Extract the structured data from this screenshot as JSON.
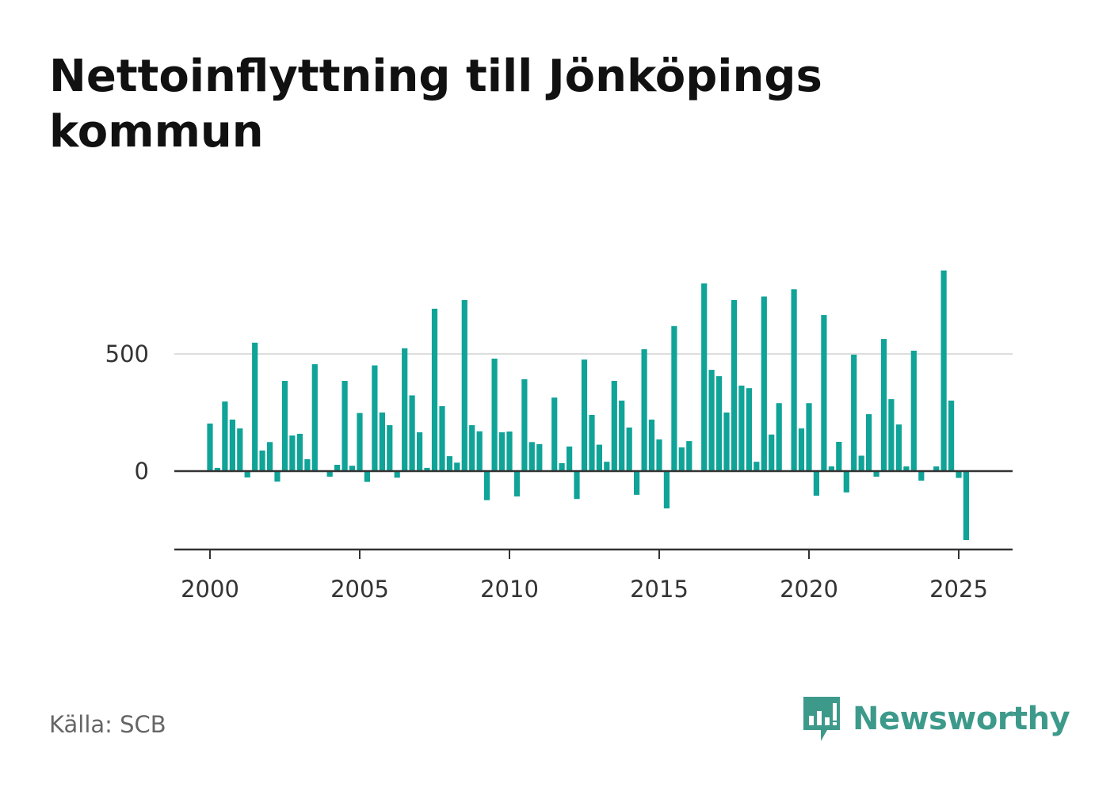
{
  "title": "Nettoinflyttning till Jönköpings kommun",
  "source": "Källa: SCB",
  "brand": {
    "name": "Newsworthy",
    "icon": "newsworthy-logo-icon"
  },
  "colors": {
    "bar": "#10a398",
    "grid": "#dddddd",
    "axis": "#333333",
    "brand": "#3d9a8b"
  },
  "chart_data": {
    "type": "bar",
    "title": "Nettoinflyttning till Jönköpings kommun",
    "xlabel": "",
    "ylabel": "",
    "x_ticks": [
      "2000",
      "2005",
      "2010",
      "2015",
      "2020",
      "2025"
    ],
    "y_ticks": [
      "0",
      "500"
    ],
    "ylim": [
      -330,
      860
    ],
    "grid": "horizontal",
    "categories": [
      "2000 Q1",
      "2000 Q2",
      "2000 Q3",
      "2000 Q4",
      "2001 Q1",
      "2001 Q2",
      "2001 Q3",
      "2001 Q4",
      "2002 Q1",
      "2002 Q2",
      "2002 Q3",
      "2002 Q4",
      "2003 Q1",
      "2003 Q2",
      "2003 Q3",
      "2003 Q4",
      "2004 Q1",
      "2004 Q2",
      "2004 Q3",
      "2004 Q4",
      "2005 Q1",
      "2005 Q2",
      "2005 Q3",
      "2005 Q4",
      "2006 Q1",
      "2006 Q2",
      "2006 Q3",
      "2006 Q4",
      "2007 Q1",
      "2007 Q2",
      "2007 Q3",
      "2007 Q4",
      "2008 Q1",
      "2008 Q2",
      "2008 Q3",
      "2008 Q4",
      "2009 Q1",
      "2009 Q2",
      "2009 Q3",
      "2009 Q4",
      "2010 Q1",
      "2010 Q2",
      "2010 Q3",
      "2010 Q4",
      "2011 Q1",
      "2011 Q2",
      "2011 Q3",
      "2011 Q4",
      "2012 Q1",
      "2012 Q2",
      "2012 Q3",
      "2012 Q4",
      "2013 Q1",
      "2013 Q2",
      "2013 Q3",
      "2013 Q4",
      "2014 Q1",
      "2014 Q2",
      "2014 Q3",
      "2014 Q4",
      "2015 Q1",
      "2015 Q2",
      "2015 Q3",
      "2015 Q4",
      "2016 Q1",
      "2016 Q2",
      "2016 Q3",
      "2016 Q4",
      "2017 Q1",
      "2017 Q2",
      "2017 Q3",
      "2017 Q4",
      "2018 Q1",
      "2018 Q2",
      "2018 Q3",
      "2018 Q4",
      "2019 Q1",
      "2019 Q2",
      "2019 Q3",
      "2019 Q4",
      "2020 Q1",
      "2020 Q2",
      "2020 Q3",
      "2020 Q4",
      "2021 Q1",
      "2021 Q2",
      "2021 Q3",
      "2021 Q4",
      "2022 Q1",
      "2022 Q2",
      "2022 Q3",
      "2022 Q4",
      "2023 Q1",
      "2023 Q2",
      "2023 Q3",
      "2023 Q4",
      "2024 Q1",
      "2024 Q2",
      "2024 Q3",
      "2024 Q4",
      "2025 Q1",
      "2025 Q2"
    ],
    "values": [
      203,
      14,
      297,
      220,
      182,
      -27,
      548,
      88,
      124,
      -45,
      385,
      152,
      159,
      51,
      456,
      0,
      -24,
      27,
      385,
      23,
      248,
      -46,
      451,
      250,
      196,
      -28,
      524,
      323,
      166,
      14,
      693,
      277,
      64,
      36,
      730,
      196,
      170,
      -124,
      480,
      166,
      169,
      -108,
      392,
      124,
      115,
      0,
      314,
      34,
      105,
      -119,
      476,
      240,
      113,
      40,
      385,
      301,
      186,
      -101,
      520,
      220,
      135,
      -159,
      619,
      101,
      128,
      0,
      801,
      432,
      405,
      250,
      730,
      365,
      354,
      40,
      745,
      156,
      290,
      0,
      776,
      182,
      290,
      -105,
      666,
      20,
      125,
      -91,
      497,
      66,
      243,
      -24,
      564,
      307,
      199,
      20,
      514,
      -41,
      0,
      20,
      856,
      301,
      -29,
      -294
    ]
  }
}
